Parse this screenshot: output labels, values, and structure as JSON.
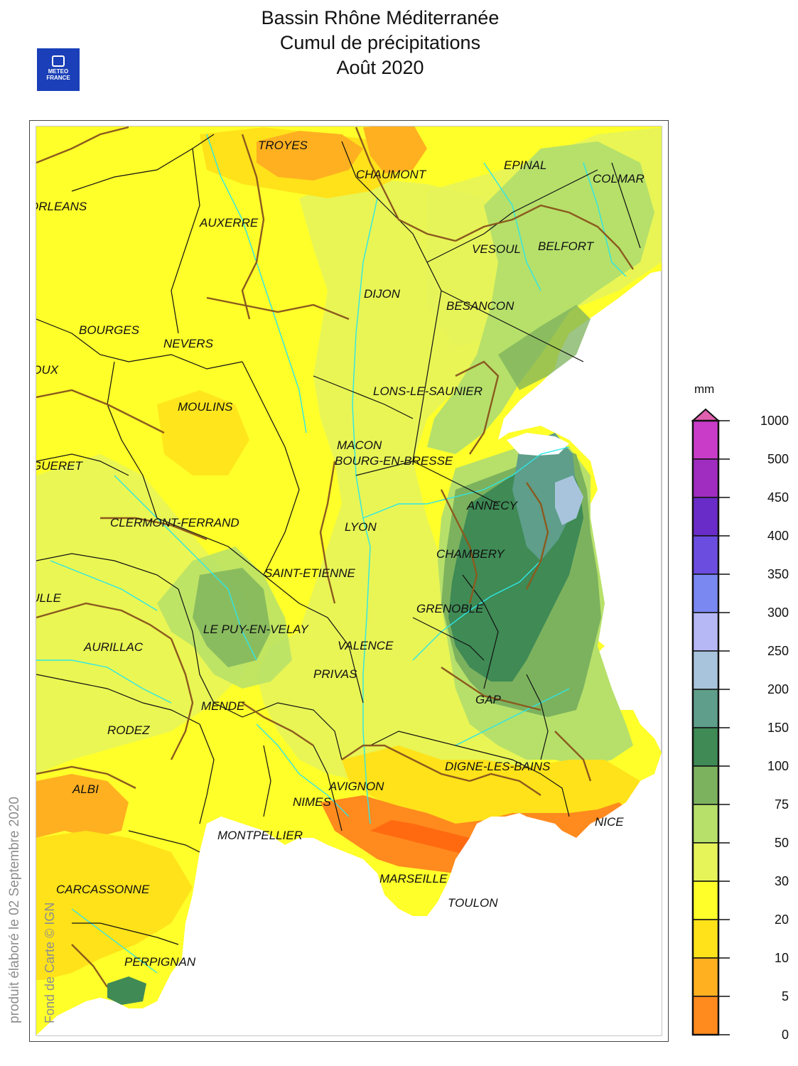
{
  "header": {
    "title_line1": "Bassin Rhône Méditerranée",
    "title_line2": "Cumul de précipitations",
    "title_line3": "Août 2020"
  },
  "logo": {
    "line1": "METEO",
    "line2": "FRANCE"
  },
  "side_text": "produit élaboré le 02 Septembre 2020",
  "credit": "Fond de Carte © IGN",
  "legend": {
    "unit": "mm",
    "classes": [
      {
        "label": "1000",
        "color": "#c83cc8"
      },
      {
        "label": "500",
        "color": "#a02cc0"
      },
      {
        "label": "450",
        "color": "#6a2cc8"
      },
      {
        "label": "400",
        "color": "#6b4ee0"
      },
      {
        "label": "350",
        "color": "#7a88f2"
      },
      {
        "label": "300",
        "color": "#b6b8f6"
      },
      {
        "label": "250",
        "color": "#a8c4dc"
      },
      {
        "label": "200",
        "color": "#5e9e8a"
      },
      {
        "label": "150",
        "color": "#3f8a55"
      },
      {
        "label": "100",
        "color": "#7cb25e"
      },
      {
        "label": "75",
        "color": "#b6e06a"
      },
      {
        "label": "50",
        "color": "#e6f45a"
      },
      {
        "label": "30",
        "color": "#ffff2a"
      },
      {
        "label": "20",
        "color": "#ffe21a"
      },
      {
        "label": "10",
        "color": "#ffb020"
      },
      {
        "label": "5",
        "color": "#ff8a1e"
      },
      {
        "label": "0",
        "color": "#ff6a10"
      }
    ]
  },
  "cities": [
    "TROYES",
    "CHAUMONT",
    "EPINAL",
    "COLMAR",
    "ORLEANS",
    "AUXERRE",
    "VESOUL",
    "BELFORT",
    "DIJON",
    "BESANCON",
    "BOURGES",
    "NEVERS",
    "CHATEAUROUX",
    "LONS-LE-SAUNIER",
    "MOULINS",
    "MACON",
    "BOURG-EN-BRESSE",
    "GUERET",
    "ANNECY",
    "CLERMONT-FERRAND",
    "LYON",
    "CHAMBERY",
    "SAINT-ETIENNE",
    "TULLE",
    "GRENOBLE",
    "LE PUY-EN-VELAY",
    "AURILLAC",
    "VALENCE",
    "PRIVAS",
    "GAP",
    "MENDE",
    "RODEZ",
    "DIGNE-LES-BAINS",
    "ALBI",
    "AVIGNON",
    "NIMES",
    "NICE",
    "MONTPELLIER",
    "MARSEILLE",
    "CARCASSONNE",
    "TOULON",
    "PERPIGNAN"
  ]
}
